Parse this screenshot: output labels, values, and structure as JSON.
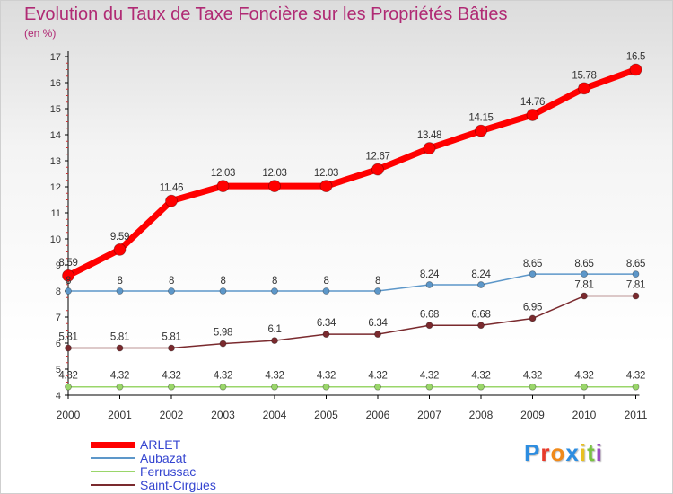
{
  "chart_data": {
    "type": "line",
    "title": "Evolution du Taux de Taxe Foncière sur les Propriétés Bâties",
    "subtitle": "(en %)",
    "x": [
      "2000",
      "2001",
      "2002",
      "2003",
      "2004",
      "2005",
      "2006",
      "2007",
      "2008",
      "2009",
      "2010",
      "2011"
    ],
    "ylim": [
      4,
      17
    ],
    "yticks": [
      "4",
      "5",
      "6",
      "7",
      "8",
      "9",
      "10",
      "11",
      "12",
      "13",
      "14",
      "15",
      "16",
      "17"
    ],
    "series": [
      {
        "name": "ARLET",
        "color": "#ff0000",
        "values": [
          8.59,
          9.59,
          11.46,
          12.03,
          12.03,
          12.03,
          12.67,
          13.48,
          14.15,
          14.76,
          15.78,
          16.5
        ],
        "labels": [
          "8.59",
          "9.59",
          "11.46",
          "12.03",
          "12.03",
          "12.03",
          "12.67",
          "13.48",
          "14.15",
          "14.76",
          "15.78",
          "16.5"
        ]
      },
      {
        "name": "Aubazat",
        "color": "#5d97c9",
        "values": [
          8,
          8,
          8,
          8,
          8,
          8,
          8,
          8.24,
          8.24,
          8.65,
          8.65,
          8.65
        ],
        "labels": [
          "8",
          "8",
          "8",
          "8",
          "8",
          "8",
          "8",
          "8.24",
          "8.24",
          "8.65",
          "8.65",
          "8.65"
        ]
      },
      {
        "name": "Ferrussac",
        "color": "#9ad66a",
        "values": [
          4.32,
          4.32,
          4.32,
          4.32,
          4.32,
          4.32,
          4.32,
          4.32,
          4.32,
          4.32,
          4.32,
          4.32
        ],
        "labels": [
          "4.32",
          "4.32",
          "4.32",
          "4.32",
          "4.32",
          "4.32",
          "4.32",
          "4.32",
          "4.32",
          "4.32",
          "4.32",
          "4.32"
        ]
      },
      {
        "name": "Saint-Cirgues",
        "color": "#7a2a2e",
        "values": [
          5.81,
          5.81,
          5.81,
          5.98,
          6.1,
          6.34,
          6.34,
          6.68,
          6.68,
          6.95,
          7.81,
          7.81
        ],
        "labels": [
          "5.81",
          "5.81",
          "5.81",
          "5.98",
          "6.1",
          "6.34",
          "6.34",
          "6.68",
          "6.68",
          "6.95",
          "7.81",
          "7.81"
        ]
      }
    ]
  },
  "logo": {
    "letters": [
      "P",
      "r",
      "o",
      "x",
      "i",
      "t",
      "i"
    ],
    "colors": [
      "#2d8de0",
      "#e83a2a",
      "#f08a1a",
      "#2d8de0",
      "#e8c020",
      "#7ac243",
      "#9a4fc0"
    ]
  }
}
